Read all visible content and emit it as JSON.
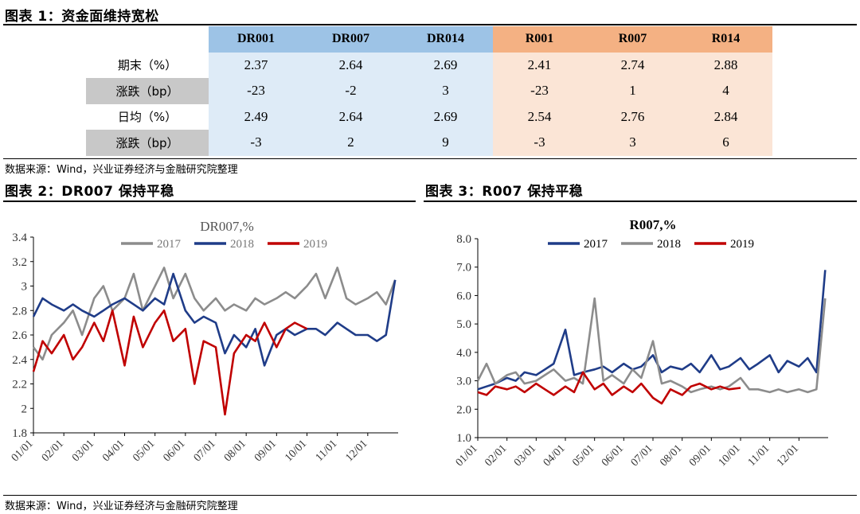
{
  "figure1": {
    "title": "图表 1：资金面维持宽松",
    "columns": [
      "DR001",
      "DR007",
      "DR014",
      "R001",
      "R007",
      "R014"
    ],
    "rows": [
      {
        "label": "期末（%）",
        "values": [
          "2.37",
          "2.64",
          "2.69",
          "2.41",
          "2.74",
          "2.88"
        ]
      },
      {
        "label": "涨跌（bp）",
        "values": [
          "-23",
          "-2",
          "3",
          "-23",
          "1",
          "4"
        ]
      },
      {
        "label": "日均（%）",
        "values": [
          "2.49",
          "2.64",
          "2.69",
          "2.54",
          "2.76",
          "2.84"
        ]
      },
      {
        "label": "涨跌（bp）",
        "values": [
          "-3",
          "2",
          "9",
          "-3",
          "3",
          "6"
        ]
      }
    ],
    "source": "数据来源：Wind，兴业证券经济与金融研究院整理"
  },
  "figure2_title": "图表 2：DR007 保持平稳",
  "figure3_title": "图表 3：R007 保持平稳",
  "source_bottom": "数据来源：Wind，兴业证券经济与金融研究院整理",
  "colors": {
    "navy": "#1f3c88",
    "gray": "#8c8c8c",
    "red": "#c00000"
  },
  "chart_data": [
    {
      "type": "line",
      "title": "DR007,%",
      "xlabel": "",
      "ylabel": "",
      "x_ticks": [
        "01/01",
        "02/01",
        "03/01",
        "04/01",
        "05/01",
        "06/01",
        "07/01",
        "08/01",
        "09/01",
        "10/01",
        "11/01",
        "12/01"
      ],
      "y_ticks": [
        "1.8",
        "2",
        "2.2",
        "2.4",
        "2.6",
        "2.8",
        "3",
        "3.2",
        "3.4"
      ],
      "ylim": [
        1.8,
        3.4
      ],
      "legend": "top",
      "series": [
        {
          "name": "2017",
          "color": "#8c8c8c",
          "x_month": [
            0,
            0.3,
            0.6,
            1,
            1.3,
            1.6,
            2,
            2.3,
            2.6,
            3,
            3.3,
            3.6,
            4,
            4.3,
            4.6,
            5,
            5.3,
            5.6,
            6,
            6.3,
            6.6,
            7,
            7.3,
            7.6,
            8,
            8.3,
            8.6,
            9,
            9.3,
            9.6,
            10,
            10.3,
            10.6,
            11,
            11.3,
            11.6,
            11.9
          ],
          "values": [
            2.5,
            2.4,
            2.6,
            2.7,
            2.8,
            2.6,
            2.9,
            3.0,
            2.8,
            2.9,
            3.1,
            2.8,
            3.0,
            3.15,
            2.9,
            3.1,
            2.9,
            2.8,
            2.9,
            2.8,
            2.85,
            2.8,
            2.9,
            2.85,
            2.9,
            2.95,
            2.9,
            3.0,
            3.1,
            2.9,
            3.15,
            2.9,
            2.85,
            2.9,
            2.95,
            2.85,
            3.05
          ]
        },
        {
          "name": "2018",
          "color": "#1f3c88",
          "x_month": [
            0,
            0.3,
            0.6,
            1,
            1.3,
            1.6,
            2,
            2.3,
            2.6,
            3,
            3.3,
            3.6,
            4,
            4.3,
            4.6,
            5,
            5.3,
            5.6,
            6,
            6.3,
            6.6,
            7,
            7.3,
            7.6,
            8,
            8.3,
            8.6,
            9,
            9.3,
            9.6,
            10,
            10.3,
            10.6,
            11,
            11.3,
            11.6,
            11.9
          ],
          "values": [
            2.75,
            2.9,
            2.85,
            2.8,
            2.85,
            2.8,
            2.75,
            2.8,
            2.85,
            2.9,
            2.85,
            2.8,
            2.9,
            2.85,
            3.1,
            2.8,
            2.7,
            2.75,
            2.7,
            2.45,
            2.6,
            2.5,
            2.65,
            2.35,
            2.6,
            2.65,
            2.6,
            2.65,
            2.65,
            2.6,
            2.7,
            2.65,
            2.6,
            2.6,
            2.55,
            2.6,
            3.05
          ]
        },
        {
          "name": "2019",
          "color": "#c00000",
          "x_month": [
            0,
            0.3,
            0.6,
            1,
            1.3,
            1.6,
            2,
            2.3,
            2.6,
            3,
            3.3,
            3.6,
            4,
            4.3,
            4.6,
            5,
            5.3,
            5.6,
            6,
            6.3,
            6.6,
            7,
            7.3,
            7.6,
            8,
            8.3,
            8.6,
            9
          ],
          "values": [
            2.3,
            2.55,
            2.45,
            2.6,
            2.4,
            2.5,
            2.7,
            2.55,
            2.8,
            2.35,
            2.75,
            2.5,
            2.7,
            2.8,
            2.55,
            2.65,
            2.2,
            2.55,
            2.5,
            1.95,
            2.45,
            2.6,
            2.55,
            2.7,
            2.5,
            2.65,
            2.7,
            2.65
          ]
        }
      ]
    },
    {
      "type": "line",
      "title": "R007,%",
      "xlabel": "",
      "ylabel": "",
      "x_ticks": [
        "01/01",
        "02/01",
        "03/01",
        "04/01",
        "05/01",
        "06/01",
        "07/01",
        "08/01",
        "09/01",
        "10/01",
        "11/01",
        "12/01"
      ],
      "y_ticks": [
        "1.0",
        "2.0",
        "3.0",
        "4.0",
        "5.0",
        "6.0",
        "7.0",
        "8.0"
      ],
      "ylim": [
        1.0,
        8.0
      ],
      "legend": "top",
      "series": [
        {
          "name": "2017",
          "color": "#1f3c88",
          "x_month": [
            0,
            0.3,
            0.6,
            1,
            1.3,
            1.6,
            2,
            2.3,
            2.6,
            3,
            3.3,
            3.6,
            4,
            4.3,
            4.6,
            5,
            5.3,
            5.6,
            6,
            6.3,
            6.6,
            7,
            7.3,
            7.6,
            8,
            8.3,
            8.6,
            9,
            9.3,
            9.6,
            10,
            10.3,
            10.6,
            11,
            11.3,
            11.6,
            11.9
          ],
          "values": [
            2.7,
            2.8,
            2.9,
            3.1,
            3.0,
            3.3,
            3.2,
            3.4,
            3.6,
            4.8,
            3.2,
            3.3,
            3.4,
            3.5,
            3.3,
            3.6,
            3.4,
            3.5,
            3.9,
            3.3,
            3.5,
            3.4,
            3.6,
            3.3,
            3.9,
            3.4,
            3.5,
            3.8,
            3.4,
            3.6,
            3.9,
            3.3,
            3.7,
            3.5,
            3.8,
            3.3,
            6.9
          ]
        },
        {
          "name": "2018",
          "color": "#8c8c8c",
          "x_month": [
            0,
            0.3,
            0.6,
            1,
            1.3,
            1.6,
            2,
            2.3,
            2.6,
            3,
            3.3,
            3.6,
            4,
            4.3,
            4.6,
            5,
            5.3,
            5.6,
            6,
            6.3,
            6.6,
            7,
            7.3,
            7.6,
            8,
            8.3,
            8.6,
            9,
            9.3,
            9.6,
            10,
            10.3,
            10.6,
            11,
            11.3,
            11.6,
            11.9
          ],
          "values": [
            3.0,
            3.6,
            2.9,
            3.2,
            3.3,
            2.9,
            3.0,
            3.2,
            3.4,
            3.0,
            3.1,
            2.9,
            5.9,
            3.0,
            3.2,
            2.9,
            3.4,
            3.1,
            4.4,
            2.9,
            3.0,
            2.8,
            2.6,
            2.7,
            2.8,
            2.7,
            2.8,
            3.1,
            2.7,
            2.7,
            2.6,
            2.7,
            2.6,
            2.7,
            2.6,
            2.7,
            5.9
          ]
        },
        {
          "name": "2019",
          "color": "#c00000",
          "x_month": [
            0,
            0.3,
            0.6,
            1,
            1.3,
            1.6,
            2,
            2.3,
            2.6,
            3,
            3.3,
            3.6,
            4,
            4.3,
            4.6,
            5,
            5.3,
            5.6,
            6,
            6.3,
            6.6,
            7,
            7.3,
            7.6,
            8,
            8.3,
            8.6,
            9
          ],
          "values": [
            2.6,
            2.5,
            2.8,
            2.7,
            2.8,
            2.6,
            2.9,
            2.7,
            2.5,
            2.8,
            2.6,
            3.3,
            2.7,
            2.9,
            2.5,
            2.8,
            2.6,
            2.9,
            2.4,
            2.2,
            2.7,
            2.5,
            2.8,
            2.9,
            2.7,
            2.8,
            2.7,
            2.75
          ]
        }
      ]
    }
  ]
}
